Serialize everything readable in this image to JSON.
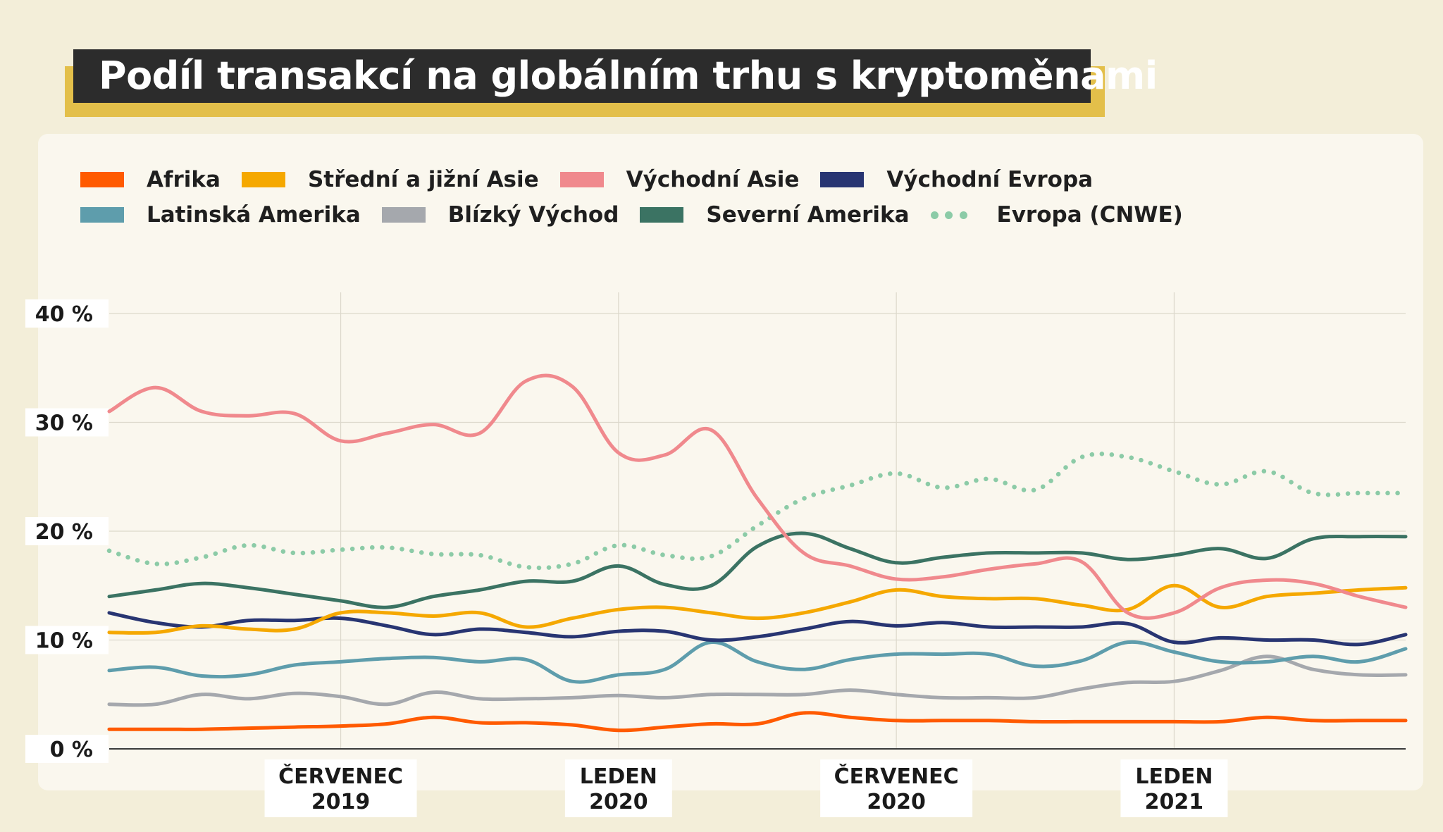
{
  "title": "Podíl transakcí na globálním trhu s kryptoměnami",
  "colors": {
    "background": "#f3eed9",
    "card": "#faf7ee",
    "title_bg": "#2c2c2c",
    "title_accent": "#e3bf4a"
  },
  "legend": [
    {
      "label": "Afrika",
      "color": "#ff5a00",
      "style": "solid"
    },
    {
      "label": "Střední a jižní Asie",
      "color": "#f5a800",
      "style": "solid"
    },
    {
      "label": "Východní Asie",
      "color": "#f0898d",
      "style": "solid"
    },
    {
      "label": "Východní Evropa",
      "color": "#283572",
      "style": "solid"
    },
    {
      "label": "Latinská Amerika",
      "color": "#5e9dac",
      "style": "solid"
    },
    {
      "label": "Blízký Východ",
      "color": "#a5a8ad",
      "style": "solid"
    },
    {
      "label": "Severní Amerika",
      "color": "#3b7363",
      "style": "solid"
    },
    {
      "label": "Evropa (CNWE)",
      "color": "#8ccba7",
      "style": "dotted"
    }
  ],
  "chart_data": {
    "type": "line",
    "title": "Podíl transakcí na globálním trhu s kryptoměnami",
    "x_range": [
      "2019-02",
      "2021-06"
    ],
    "x_ticks": [
      {
        "date": "2019-07",
        "label_line1": "ČERVENEC",
        "label_line2": "2019"
      },
      {
        "date": "2020-01",
        "label_line1": "LEDEN",
        "label_line2": "2020"
      },
      {
        "date": "2020-07",
        "label_line1": "ČERVENEC",
        "label_line2": "2020"
      },
      {
        "date": "2021-01",
        "label_line1": "LEDEN",
        "label_line2": "2021"
      }
    ],
    "y_ticks": [
      {
        "value": 0,
        "label": "0 %"
      },
      {
        "value": 10,
        "label": "10 %"
      },
      {
        "value": 20,
        "label": "20 %"
      },
      {
        "value": 30,
        "label": "30 %"
      },
      {
        "value": 40,
        "label": "40 %"
      }
    ],
    "ylim": [
      0,
      40
    ],
    "grid": true,
    "legend_position": "top",
    "x": [
      "2019-02",
      "2019-03",
      "2019-04",
      "2019-05",
      "2019-06",
      "2019-07",
      "2019-08",
      "2019-09",
      "2019-10",
      "2019-11",
      "2019-12",
      "2020-01",
      "2020-02",
      "2020-03",
      "2020-04",
      "2020-05",
      "2020-06",
      "2020-07",
      "2020-08",
      "2020-09",
      "2020-10",
      "2020-11",
      "2020-12",
      "2021-01",
      "2021-02",
      "2021-03",
      "2021-04",
      "2021-05",
      "2021-06"
    ],
    "series": [
      {
        "name": "Afrika",
        "values": [
          1.8,
          1.8,
          1.8,
          1.9,
          2.0,
          2.1,
          2.3,
          2.9,
          2.4,
          2.4,
          2.2,
          1.7,
          2.0,
          2.3,
          2.3,
          3.3,
          2.9,
          2.6,
          2.6,
          2.6,
          2.5,
          2.5,
          2.5,
          2.5,
          2.5,
          2.9,
          2.6,
          2.6,
          2.6
        ]
      },
      {
        "name": "Střední a jižní Asie",
        "values": [
          10.7,
          10.7,
          11.3,
          11.0,
          11.0,
          12.5,
          12.5,
          12.2,
          12.5,
          11.2,
          12.0,
          12.8,
          13.0,
          12.5,
          12.0,
          12.5,
          13.5,
          14.6,
          14.0,
          13.8,
          13.8,
          13.2,
          12.8,
          15.0,
          13.0,
          14.0,
          14.3,
          14.6,
          14.8
        ]
      },
      {
        "name": "Východní Asie",
        "values": [
          31.0,
          33.2,
          31.0,
          30.6,
          30.8,
          28.3,
          29.0,
          29.8,
          29.0,
          33.8,
          33.3,
          27.2,
          27.0,
          29.3,
          23.0,
          18.0,
          16.8,
          15.6,
          15.8,
          16.5,
          17.0,
          17.2,
          12.5,
          12.5,
          14.8,
          15.5,
          15.2,
          14.0,
          13.0
        ]
      },
      {
        "name": "Východní Evropa",
        "values": [
          12.5,
          11.6,
          11.2,
          11.8,
          11.8,
          12.0,
          11.3,
          10.5,
          11.0,
          10.7,
          10.3,
          10.8,
          10.8,
          10.0,
          10.3,
          11.0,
          11.7,
          11.3,
          11.6,
          11.2,
          11.2,
          11.2,
          11.5,
          9.8,
          10.2,
          10.0,
          10.0,
          9.6,
          10.5
        ]
      },
      {
        "name": "Latinská Amerika",
        "values": [
          7.2,
          7.5,
          6.7,
          6.8,
          7.7,
          8.0,
          8.3,
          8.4,
          8.0,
          8.2,
          6.2,
          6.8,
          7.3,
          9.8,
          8.0,
          7.3,
          8.2,
          8.7,
          8.7,
          8.7,
          7.6,
          8.1,
          9.8,
          8.9,
          8.0,
          8.0,
          8.5,
          8.0,
          9.2
        ]
      },
      {
        "name": "Blízký Východ",
        "values": [
          4.1,
          4.1,
          5.0,
          4.6,
          5.1,
          4.8,
          4.1,
          5.2,
          4.6,
          4.6,
          4.7,
          4.9,
          4.7,
          5.0,
          5.0,
          5.0,
          5.4,
          5.0,
          4.7,
          4.7,
          4.7,
          5.5,
          6.1,
          6.2,
          7.2,
          8.5,
          7.3,
          6.8,
          6.8
        ]
      },
      {
        "name": "Severní Amerika",
        "values": [
          14.0,
          14.6,
          15.2,
          14.8,
          14.2,
          13.6,
          13.0,
          14.0,
          14.6,
          15.4,
          15.4,
          16.8,
          15.1,
          15.0,
          18.6,
          19.8,
          18.4,
          17.1,
          17.6,
          18.0,
          18.0,
          18.0,
          17.4,
          17.8,
          18.4,
          17.5,
          19.3,
          19.5,
          19.5
        ]
      },
      {
        "name": "Evropa (CNWE)",
        "values": [
          18.2,
          17.0,
          17.6,
          18.7,
          18.0,
          18.3,
          18.5,
          17.9,
          17.8,
          16.7,
          17.0,
          18.7,
          17.8,
          17.7,
          20.5,
          23.0,
          24.2,
          25.3,
          24.0,
          24.8,
          23.8,
          26.8,
          26.8,
          25.5,
          24.3,
          25.5,
          23.5,
          23.5,
          23.5
        ]
      }
    ]
  }
}
